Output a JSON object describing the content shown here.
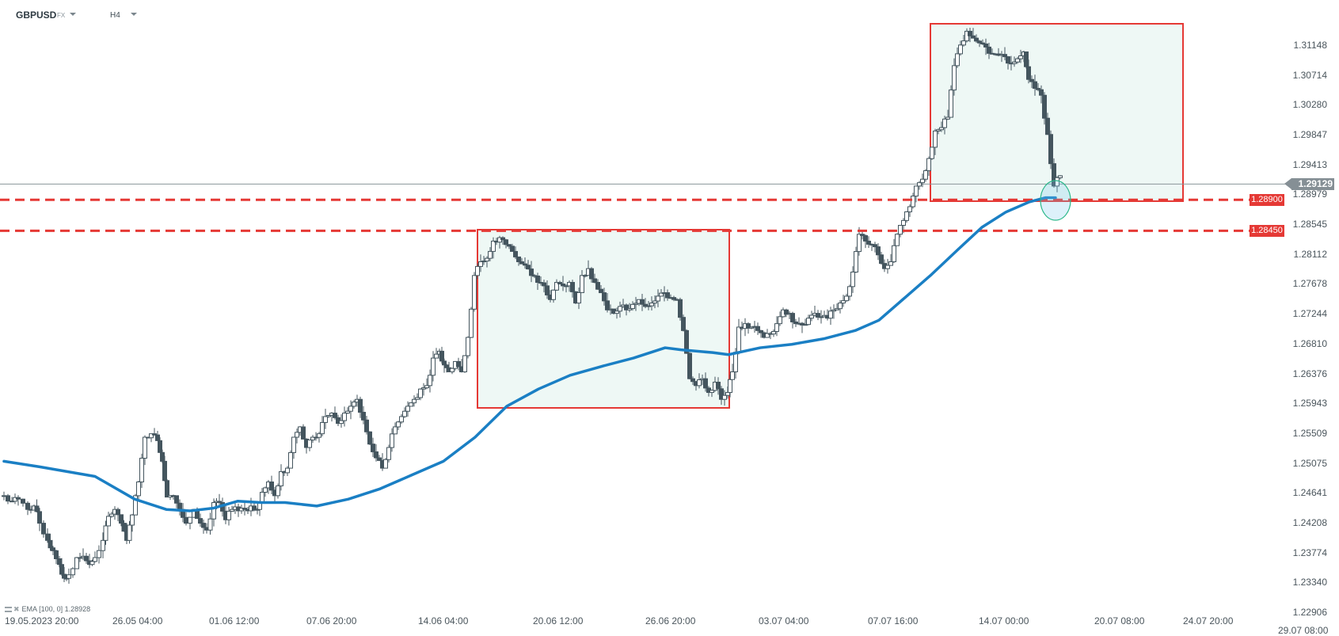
{
  "header": {
    "symbol": "GBPUSD",
    "symbol_type": "FX",
    "timeframe": "H4"
  },
  "indicator": {
    "label": "EMA",
    "params": "[100, 0]",
    "value": "1.28928",
    "color": "#1a7fc4"
  },
  "price_axis": {
    "labels": [
      "1.31148",
      "1.30714",
      "1.30280",
      "1.29847",
      "1.29413",
      "1.28979",
      "1.28545",
      "1.28112",
      "1.27678",
      "1.27244",
      "1.26810",
      "1.26376",
      "1.25943",
      "1.25509",
      "1.25075",
      "1.24641",
      "1.24208",
      "1.23774",
      "1.23340",
      "1.22906"
    ]
  },
  "time_axis": {
    "labels": [
      "19.05.2023  20:00",
      "26.05  04:00",
      "01.06  12:00",
      "07.06  20:00",
      "14.06  04:00",
      "20.06  12:00",
      "26.06  20:00",
      "03.07  04:00",
      "07.07  16:00",
      "14.07  00:00",
      "20.07  08:00",
      "24.07  20:00",
      "29.07  08:00"
    ]
  },
  "current_price": {
    "value": "1.29129",
    "color": "#858f95"
  },
  "horizontal_levels": [
    {
      "value": "1.28900",
      "color": "#e53935",
      "style": "dashed"
    },
    {
      "value": "1.28450",
      "color": "#e53935",
      "style": "dashed"
    }
  ],
  "colors": {
    "candle": "#44555e",
    "zone_fill": "#eef8f5",
    "zone_border": "#e53935",
    "highlight_ellipse": "#2bb88a"
  },
  "chart_data": {
    "type": "candlestick",
    "title": "GBPUSD FX H4",
    "xlabel": "",
    "ylabel": "",
    "ylim": [
      1.22906,
      1.31148
    ],
    "legend": [
      "EMA [100, 0] 1.28928"
    ],
    "grid": false,
    "x_ticks": [
      "19.05.2023 20:00",
      "26.05 04:00",
      "01.06 12:00",
      "07.06 20:00",
      "14.06 04:00",
      "20.06 12:00",
      "26.06 20:00",
      "03.07 04:00",
      "07.07 16:00",
      "14.07 00:00",
      "20.07 08:00",
      "24.07 20:00",
      "29.07 08:00"
    ],
    "close_path": [
      [
        0,
        1.246
      ],
      [
        10,
        1.2452
      ],
      [
        18,
        1.2455
      ],
      [
        30,
        1.244
      ],
      [
        38,
        1.2445
      ],
      [
        45,
        1.242
      ],
      [
        55,
        1.2395
      ],
      [
        62,
        1.238
      ],
      [
        70,
        1.236
      ],
      [
        76,
        1.234
      ],
      [
        82,
        1.2345
      ],
      [
        92,
        1.237
      ],
      [
        100,
        1.2372
      ],
      [
        108,
        1.236
      ],
      [
        115,
        1.237
      ],
      [
        125,
        1.2395
      ],
      [
        132,
        1.243
      ],
      [
        140,
        1.244
      ],
      [
        148,
        1.242
      ],
      [
        155,
        1.2395
      ],
      [
        162,
        1.2432
      ],
      [
        170,
        1.248
      ],
      [
        178,
        1.2545
      ],
      [
        186,
        1.255
      ],
      [
        194,
        1.254
      ],
      [
        200,
        1.251
      ],
      [
        206,
        1.2458
      ],
      [
        214,
        1.246
      ],
      [
        222,
        1.244
      ],
      [
        230,
        1.242
      ],
      [
        240,
        1.244
      ],
      [
        248,
        1.242
      ],
      [
        256,
        1.241
      ],
      [
        265,
        1.245
      ],
      [
        272,
        1.245
      ],
      [
        280,
        1.2425
      ],
      [
        288,
        1.244
      ],
      [
        296,
        1.2438
      ],
      [
        304,
        1.244
      ],
      [
        312,
        1.2445
      ],
      [
        320,
        1.244
      ],
      [
        326,
        1.2465
      ],
      [
        334,
        1.248
      ],
      [
        342,
        1.246
      ],
      [
        350,
        1.2495
      ],
      [
        358,
        1.25
      ],
      [
        366,
        1.2545
      ],
      [
        374,
        1.256
      ],
      [
        382,
        1.253
      ],
      [
        390,
        1.2545
      ],
      [
        398,
        1.255
      ],
      [
        406,
        1.2575
      ],
      [
        414,
        1.258
      ],
      [
        422,
        1.2565
      ],
      [
        430,
        1.258
      ],
      [
        438,
        1.259
      ],
      [
        446,
        1.26
      ],
      [
        454,
        1.257
      ],
      [
        462,
        1.2535
      ],
      [
        470,
        1.2515
      ],
      [
        478,
        1.25
      ],
      [
        486,
        1.253
      ],
      [
        494,
        1.256
      ],
      [
        502,
        1.2575
      ],
      [
        510,
        1.259
      ],
      [
        518,
        1.26
      ],
      [
        526,
        1.2615
      ],
      [
        534,
        1.262
      ],
      [
        542,
        1.266
      ],
      [
        550,
        1.267
      ],
      [
        556,
        1.265
      ],
      [
        562,
        1.264
      ],
      [
        570,
        1.2655
      ],
      [
        578,
        1.264
      ],
      [
        586,
        1.269
      ],
      [
        594,
        1.278
      ],
      [
        602,
        1.28
      ],
      [
        610,
        1.2805
      ],
      [
        618,
        1.283
      ],
      [
        626,
        1.2835
      ],
      [
        634,
        1.2825
      ],
      [
        642,
        1.2815
      ],
      [
        650,
        1.28
      ],
      [
        658,
        1.2795
      ],
      [
        666,
        1.278
      ],
      [
        674,
        1.277
      ],
      [
        682,
        1.2765
      ],
      [
        690,
        1.2745
      ],
      [
        698,
        1.277
      ],
      [
        706,
        1.2765
      ],
      [
        714,
        1.277
      ],
      [
        722,
        1.274
      ],
      [
        730,
        1.278
      ],
      [
        738,
        1.279
      ],
      [
        746,
        1.277
      ],
      [
        754,
        1.2755
      ],
      [
        762,
        1.273
      ],
      [
        770,
        1.2725
      ],
      [
        778,
        1.2735
      ],
      [
        786,
        1.273
      ],
      [
        794,
        1.2738
      ],
      [
        802,
        1.2745
      ],
      [
        810,
        1.2735
      ],
      [
        818,
        1.274
      ],
      [
        826,
        1.275
      ],
      [
        834,
        1.2755
      ],
      [
        842,
        1.2748
      ],
      [
        850,
        1.2745
      ],
      [
        858,
        1.27
      ],
      [
        866,
        1.263
      ],
      [
        874,
        1.262
      ],
      [
        882,
        1.263
      ],
      [
        890,
        1.261
      ],
      [
        898,
        1.2625
      ],
      [
        906,
        1.26
      ],
      [
        914,
        1.261
      ],
      [
        920,
        1.264
      ],
      [
        928,
        1.2705
      ],
      [
        936,
        1.271
      ],
      [
        944,
        1.2705
      ],
      [
        952,
        1.27
      ],
      [
        960,
        1.269
      ],
      [
        968,
        1.2695
      ],
      [
        976,
        1.271
      ],
      [
        984,
        1.273
      ],
      [
        992,
        1.2725
      ],
      [
        1000,
        1.271
      ],
      [
        1008,
        1.2708
      ],
      [
        1016,
        1.2718
      ],
      [
        1024,
        1.2725
      ],
      [
        1032,
        1.272
      ],
      [
        1040,
        1.2718
      ],
      [
        1048,
        1.273
      ],
      [
        1056,
        1.274
      ],
      [
        1064,
        1.275
      ],
      [
        1072,
        1.2785
      ],
      [
        1080,
        1.284
      ],
      [
        1088,
        1.283
      ],
      [
        1096,
        1.2825
      ],
      [
        1104,
        1.281
      ],
      [
        1112,
        1.279
      ],
      [
        1120,
        1.28
      ],
      [
        1128,
        1.284
      ],
      [
        1136,
        1.286
      ],
      [
        1144,
        1.288
      ],
      [
        1152,
        1.291
      ],
      [
        1160,
        1.292
      ],
      [
        1168,
        1.295
      ],
      [
        1176,
        1.299
      ],
      [
        1184,
        1.2995
      ],
      [
        1192,
        1.301
      ],
      [
        1200,
        1.3085
      ],
      [
        1208,
        1.3115
      ],
      [
        1216,
        1.3135
      ],
      [
        1224,
        1.3125
      ],
      [
        1232,
        1.3118
      ],
      [
        1240,
        1.3112
      ],
      [
        1248,
        1.3102
      ],
      [
        1256,
        1.31
      ],
      [
        1264,
        1.3098
      ],
      [
        1272,
        1.3088
      ],
      [
        1280,
        1.3095
      ],
      [
        1288,
        1.3105
      ],
      [
        1294,
        1.3065
      ],
      [
        1302,
        1.3052
      ],
      [
        1310,
        1.3042
      ],
      [
        1318,
        1.2985
      ],
      [
        1326,
        1.291
      ],
      [
        1334,
        1.2925
      ]
    ],
    "ema_100": [
      [
        5,
        1.251
      ],
      [
        50,
        1.2502
      ],
      [
        120,
        1.2488
      ],
      [
        170,
        1.2455
      ],
      [
        210,
        1.244
      ],
      [
        240,
        1.2438
      ],
      [
        270,
        1.2442
      ],
      [
        300,
        1.2452
      ],
      [
        330,
        1.245
      ],
      [
        360,
        1.245
      ],
      [
        400,
        1.2445
      ],
      [
        440,
        1.2455
      ],
      [
        480,
        1.247
      ],
      [
        520,
        1.249
      ],
      [
        560,
        1.251
      ],
      [
        600,
        1.2545
      ],
      [
        640,
        1.259
      ],
      [
        680,
        1.2615
      ],
      [
        720,
        1.2635
      ],
      [
        760,
        1.2648
      ],
      [
        800,
        1.266
      ],
      [
        840,
        1.2675
      ],
      [
        860,
        1.2672
      ],
      [
        900,
        1.2668
      ],
      [
        920,
        1.2665
      ],
      [
        960,
        1.2675
      ],
      [
        1000,
        1.268
      ],
      [
        1040,
        1.2688
      ],
      [
        1080,
        1.27
      ],
      [
        1110,
        1.2715
      ],
      [
        1140,
        1.2745
      ],
      [
        1175,
        1.278
      ],
      [
        1210,
        1.2818
      ],
      [
        1240,
        1.285
      ],
      [
        1270,
        1.2872
      ],
      [
        1300,
        1.2887
      ],
      [
        1320,
        1.2893
      ],
      [
        1333,
        1.2893
      ]
    ],
    "zones": [
      {
        "x_from": "14.06 ~08:00",
        "x_to": "30.06 ~04:00",
        "price_top": 1.2845,
        "price_bottom": 1.2601
      },
      {
        "x_from": "11.07 ~20:00",
        "x_to": "24.07 ~08:00",
        "price_top": 1.3138,
        "price_bottom": 1.289
      }
    ],
    "levels": [
      1.289,
      1.2845
    ],
    "last_price": 1.29129
  }
}
